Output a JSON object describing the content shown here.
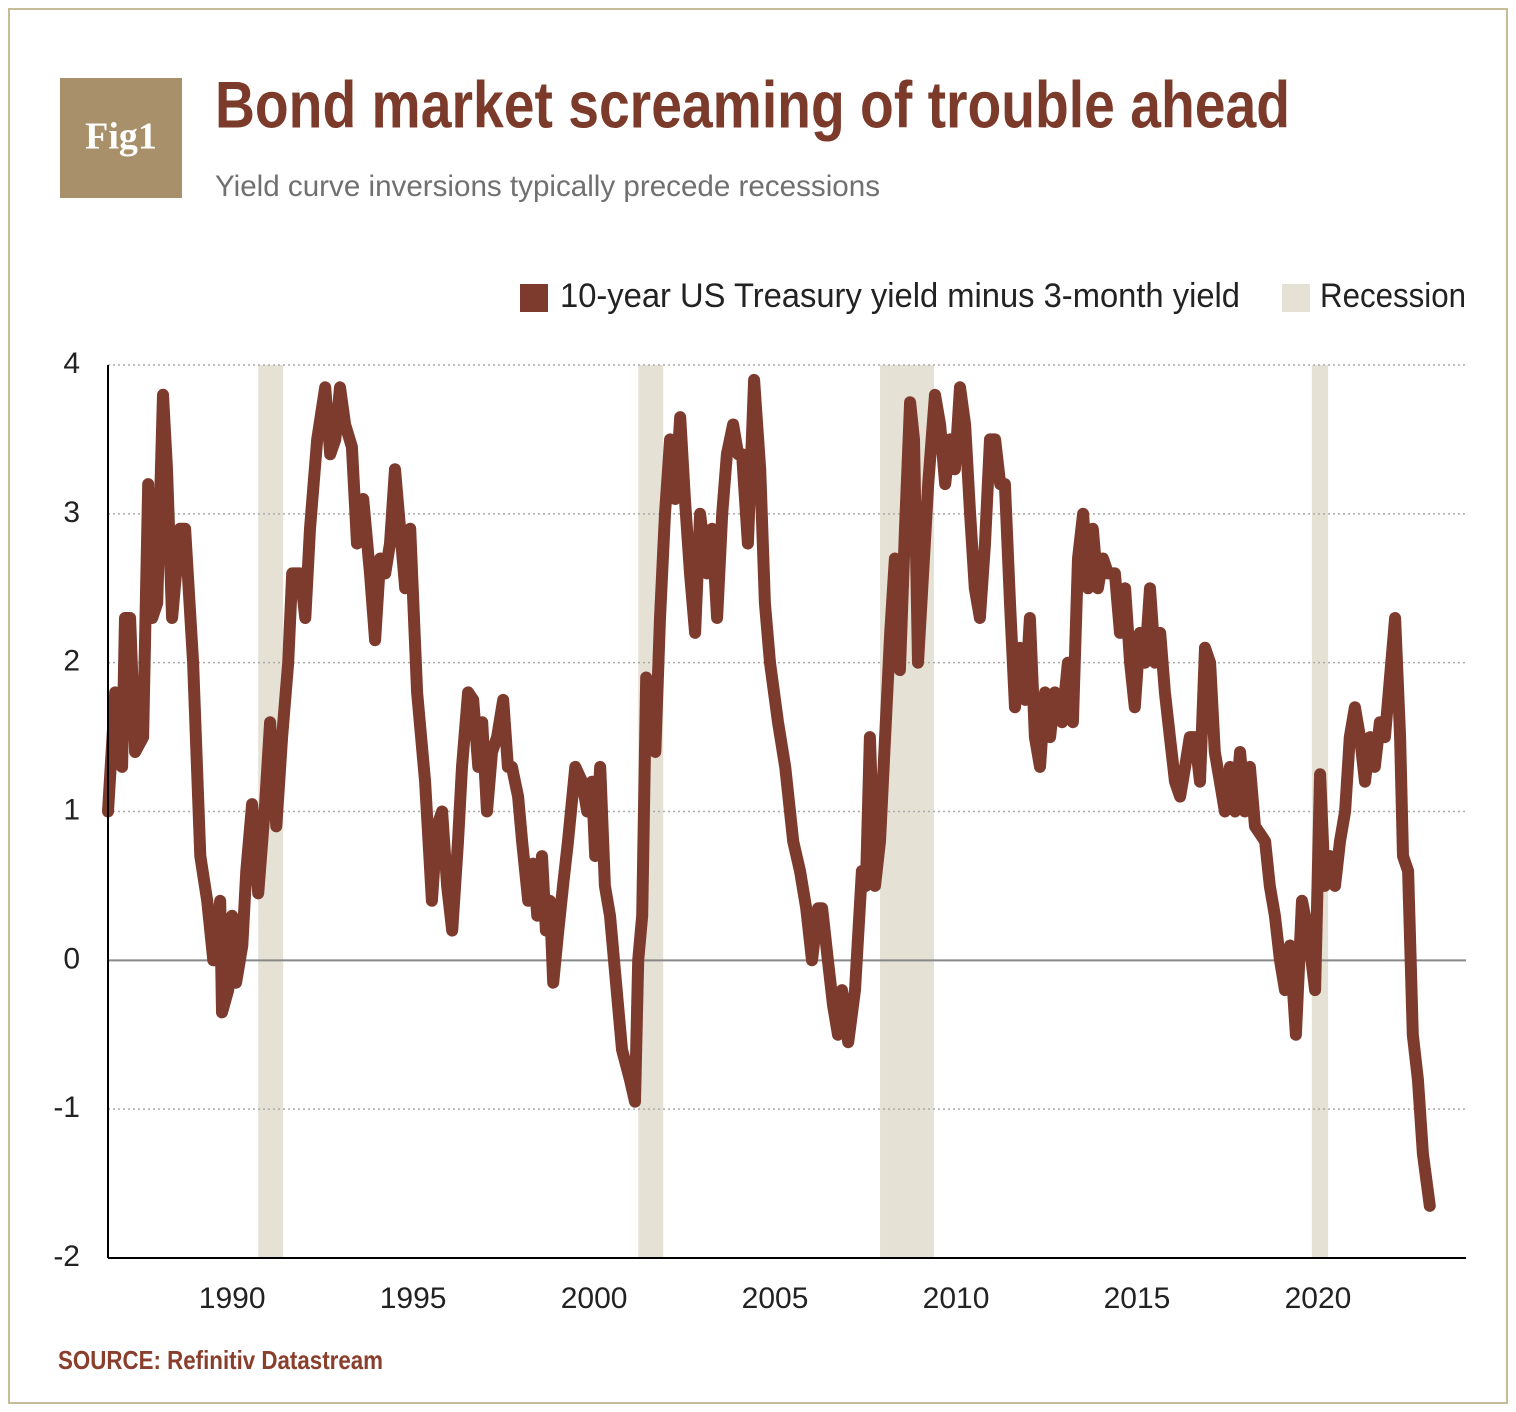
{
  "badge": "Fig1",
  "chart_data": {
    "type": "line",
    "title": "Bond market screaming of trouble ahead",
    "subtitle": "Yield curve inversions typically precede recessions",
    "source": "SOURCE: Refinitiv Datastream",
    "xlim": [
      1986.57,
      2024.09
    ],
    "xticks": [
      1990,
      1995,
      2000,
      2005,
      2010,
      2015,
      2020
    ],
    "ylim": [
      -2,
      4
    ],
    "yticks": [
      -2,
      -1,
      0,
      1,
      2,
      3,
      4
    ],
    "grid": true,
    "recession": {
      "name": "Recession",
      "color": "#e6e1d5",
      "spans": [
        [
          1990.72,
          1991.41
        ],
        [
          2001.22,
          2001.91
        ],
        [
          2007.9,
          2009.39
        ],
        [
          2019.83,
          2020.28
        ]
      ]
    },
    "x": [
      1986.57,
      1986.77,
      1986.96,
      1987.04,
      1987.18,
      1987.32,
      1987.54,
      1987.68,
      1987.79,
      1987.93,
      1988.09,
      1988.2,
      1988.34,
      1988.56,
      1988.7,
      1988.92,
      1989.12,
      1989.31,
      1989.48,
      1989.67,
      1989.72,
      1989.89,
      1990.0,
      1990.11,
      1990.28,
      1990.39,
      1990.55,
      1990.72,
      1990.91,
      1991.05,
      1991.22,
      1991.38,
      1991.55,
      1991.66,
      1991.88,
      1992.02,
      1992.15,
      1992.35,
      1992.57,
      1992.71,
      1992.85,
      1992.98,
      1993.12,
      1993.31,
      1993.45,
      1993.62,
      1993.81,
      1993.95,
      1994.09,
      1994.23,
      1994.36,
      1994.5,
      1994.64,
      1994.78,
      1994.92,
      1995.11,
      1995.33,
      1995.52,
      1995.66,
      1995.8,
      1995.94,
      1996.08,
      1996.24,
      1996.35,
      1996.52,
      1996.66,
      1996.8,
      1996.91,
      1997.04,
      1997.18,
      1997.32,
      1997.49,
      1997.62,
      1997.73,
      1997.9,
      1998.01,
      1998.18,
      1998.31,
      1998.43,
      1998.56,
      1998.67,
      1998.78,
      1998.87,
      1999.01,
      1999.14,
      1999.28,
      1999.48,
      1999.67,
      1999.81,
      1999.94,
      2000.03,
      2000.17,
      2000.3,
      2000.44,
      2000.55,
      2000.66,
      2000.77,
      2000.99,
      2001.13,
      2001.22,
      2001.33,
      2001.44,
      2001.6,
      2001.69,
      2001.82,
      2001.96,
      2002.1,
      2002.24,
      2002.38,
      2002.51,
      2002.65,
      2002.79,
      2002.93,
      2003.12,
      2003.26,
      2003.4,
      2003.54,
      2003.67,
      2003.84,
      2003.98,
      2004.09,
      2004.25,
      2004.42,
      2004.59,
      2004.72,
      2004.86,
      2005.08,
      2005.28,
      2005.5,
      2005.69,
      2005.86,
      2006.02,
      2006.19,
      2006.3,
      2006.46,
      2006.6,
      2006.74,
      2006.85,
      2007.02,
      2007.21,
      2007.4,
      2007.51,
      2007.62,
      2007.76,
      2007.9,
      2008.04,
      2008.18,
      2008.31,
      2008.45,
      2008.59,
      2008.73,
      2008.84,
      2008.95,
      2009.09,
      2009.23,
      2009.42,
      2009.56,
      2009.7,
      2009.83,
      2009.97,
      2010.11,
      2010.25,
      2010.39,
      2010.52,
      2010.66,
      2010.8,
      2010.94,
      2011.08,
      2011.22,
      2011.35,
      2011.49,
      2011.63,
      2011.77,
      2011.91,
      2012.04,
      2012.18,
      2012.32,
      2012.46,
      2012.6,
      2012.73,
      2012.93,
      2013.09,
      2013.23,
      2013.37,
      2013.51,
      2013.65,
      2013.78,
      2013.92,
      2014.06,
      2014.2,
      2014.39,
      2014.53,
      2014.67,
      2014.81,
      2014.94,
      2015.08,
      2015.22,
      2015.36,
      2015.5,
      2015.64,
      2015.77,
      2015.91,
      2016.05,
      2016.19,
      2016.33,
      2016.46,
      2016.6,
      2016.74,
      2016.88,
      2017.02,
      2017.15,
      2017.29,
      2017.43,
      2017.57,
      2017.71,
      2017.85,
      2017.98,
      2018.12,
      2018.26,
      2018.4,
      2018.54,
      2018.67,
      2018.81,
      2018.95,
      2019.09,
      2019.23,
      2019.39,
      2019.56,
      2019.72,
      2019.92,
      2020.06,
      2020.19,
      2020.33,
      2020.47,
      2020.61,
      2020.75,
      2020.88,
      2021.02,
      2021.16,
      2021.3,
      2021.44,
      2021.57,
      2021.71,
      2021.85,
      2021.99,
      2022.13,
      2022.27,
      2022.35,
      2022.49,
      2022.62,
      2022.76,
      2022.9,
      2023.09
    ],
    "series": [
      {
        "name": "10-year US Treasury yield minus 3-month yield",
        "color": "#7d3b2e",
        "values": [
          1.0,
          1.8,
          1.3,
          2.3,
          2.3,
          1.4,
          1.5,
          3.2,
          2.3,
          2.4,
          3.8,
          3.3,
          2.3,
          2.9,
          2.9,
          2.0,
          0.7,
          0.4,
          0.0,
          0.4,
          -0.35,
          -0.2,
          0.3,
          -0.15,
          0.1,
          0.6,
          1.05,
          0.45,
          1.05,
          1.6,
          0.9,
          1.5,
          2.0,
          2.6,
          2.6,
          2.3,
          2.9,
          3.5,
          3.85,
          3.4,
          3.5,
          3.85,
          3.6,
          3.45,
          2.8,
          3.1,
          2.6,
          2.15,
          2.7,
          2.6,
          2.8,
          3.3,
          2.9,
          2.5,
          2.9,
          1.8,
          1.2,
          0.4,
          0.9,
          1.0,
          0.5,
          0.2,
          0.8,
          1.3,
          1.8,
          1.75,
          1.3,
          1.6,
          1.0,
          1.4,
          1.5,
          1.75,
          1.3,
          1.3,
          1.1,
          0.8,
          0.4,
          0.65,
          0.3,
          0.7,
          0.2,
          0.4,
          -0.15,
          0.2,
          0.5,
          0.8,
          1.3,
          1.2,
          1.0,
          1.2,
          0.7,
          1.3,
          0.5,
          0.3,
          0.0,
          -0.3,
          -0.6,
          -0.8,
          -0.95,
          0.0,
          0.3,
          1.9,
          1.7,
          1.4,
          2.3,
          3.0,
          3.5,
          3.1,
          3.65,
          3.1,
          2.6,
          2.2,
          3.0,
          2.6,
          2.9,
          2.3,
          3.0,
          3.4,
          3.6,
          3.4,
          3.4,
          2.8,
          3.9,
          3.3,
          2.4,
          2.0,
          1.6,
          1.3,
          0.8,
          0.6,
          0.35,
          0.0,
          0.35,
          0.35,
          0.0,
          -0.3,
          -0.5,
          -0.2,
          -0.55,
          -0.2,
          0.6,
          0.5,
          1.5,
          0.5,
          0.8,
          1.5,
          2.2,
          2.7,
          1.95,
          2.9,
          3.75,
          3.5,
          2.0,
          2.6,
          3.2,
          3.8,
          3.6,
          3.2,
          3.5,
          3.3,
          3.85,
          3.6,
          3.0,
          2.5,
          2.3,
          2.8,
          3.5,
          3.5,
          3.2,
          3.2,
          2.4,
          1.7,
          2.1,
          1.75,
          2.3,
          1.5,
          1.3,
          1.8,
          1.5,
          1.8,
          1.6,
          2.0,
          1.6,
          2.7,
          3.0,
          2.5,
          2.9,
          2.5,
          2.7,
          2.6,
          2.6,
          2.2,
          2.5,
          2.0,
          1.7,
          2.2,
          2.0,
          2.5,
          2.0,
          2.2,
          1.8,
          1.5,
          1.2,
          1.1,
          1.3,
          1.5,
          1.5,
          1.2,
          2.1,
          2.0,
          1.4,
          1.2,
          1.0,
          1.3,
          1.0,
          1.4,
          1.0,
          1.3,
          0.9,
          0.85,
          0.8,
          0.5,
          0.3,
          0.0,
          -0.2,
          0.1,
          -0.5,
          0.4,
          0.2,
          -0.2,
          1.25,
          0.5,
          0.7,
          0.5,
          0.8,
          1.0,
          1.5,
          1.7,
          1.5,
          1.2,
          1.5,
          1.3,
          1.6,
          1.5,
          1.9,
          2.3,
          1.5,
          0.7,
          0.6,
          -0.5,
          -0.8,
          -1.3,
          -1.65
        ]
      }
    ]
  }
}
